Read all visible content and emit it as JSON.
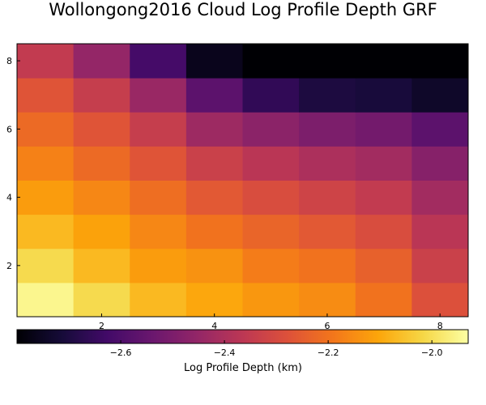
{
  "chart_data": {
    "type": "heatmap",
    "title": "Wollongong2016 Cloud Log Profile Depth GRF",
    "xlabel": "",
    "ylabel": "",
    "x": [
      1,
      2,
      3,
      4,
      5,
      6,
      7,
      8
    ],
    "y": [
      1,
      2,
      3,
      4,
      5,
      6,
      7,
      8
    ],
    "xlim": [
      0.5,
      8.5
    ],
    "ylim": [
      0.5,
      8.5
    ],
    "x_ticks": [
      2,
      4,
      6,
      8
    ],
    "y_ticks": [
      2,
      4,
      6,
      8
    ],
    "grid": false,
    "colormap": "inferno",
    "values": [
      [
        -1.95,
        -2.01,
        -2.07,
        -2.1,
        -2.13,
        -2.15,
        -2.2,
        -2.28
      ],
      [
        -2.01,
        -2.07,
        -2.12,
        -2.14,
        -2.18,
        -2.2,
        -2.24,
        -2.33
      ],
      [
        -2.07,
        -2.11,
        -2.16,
        -2.2,
        -2.23,
        -2.26,
        -2.29,
        -2.37
      ],
      [
        -2.12,
        -2.16,
        -2.21,
        -2.26,
        -2.29,
        -2.32,
        -2.35,
        -2.42
      ],
      [
        -2.17,
        -2.22,
        -2.27,
        -2.33,
        -2.37,
        -2.4,
        -2.42,
        -2.48
      ],
      [
        -2.22,
        -2.27,
        -2.34,
        -2.43,
        -2.47,
        -2.5,
        -2.52,
        -2.57
      ],
      [
        -2.27,
        -2.34,
        -2.44,
        -2.57,
        -2.66,
        -2.7,
        -2.71,
        -2.74
      ],
      [
        -2.35,
        -2.45,
        -2.62,
        -2.76,
        -2.83,
        -2.86,
        -2.86,
        -2.86
      ]
    ],
    "colorbar": {
      "label": "Log Profile Depth (km)",
      "min": -2.8,
      "max": -1.93,
      "ticks": [
        -2.6,
        -2.4,
        -2.2,
        -2.0
      ],
      "tick_labels": [
        "−2.6",
        "−2.4",
        "−2.2",
        "−2.0"
      ],
      "placement": "bottom"
    }
  }
}
